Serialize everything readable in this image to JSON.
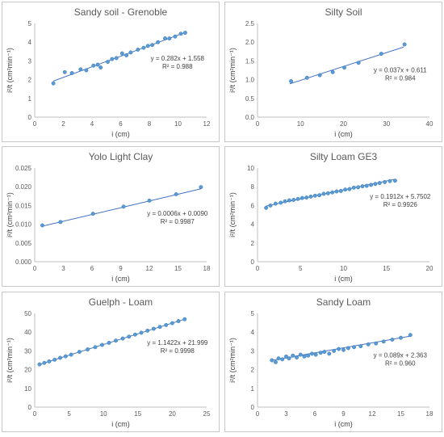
{
  "chart_data": [
    {
      "type": "scatter",
      "title": "Sandy soil - Grenoble",
      "xlabel": "i (cm)",
      "ylabel": "i²/t (cm²min⁻¹)",
      "xlim": [
        0,
        12
      ],
      "ylim": [
        0,
        5
      ],
      "xticks": [
        "0",
        "2",
        "4",
        "6",
        "8",
        "10",
        "12"
      ],
      "yticks": [
        "0",
        "1",
        "2",
        "3",
        "4",
        "5"
      ],
      "grid": false,
      "trendline": {
        "slope": 0.282,
        "intercept": 1.558,
        "x_range": [
          1.3,
          10.5
        ]
      },
      "equation": "y = 0.282x + 1.558",
      "r2": "R² = 0.988",
      "series": [
        {
          "x": [
            1.3,
            2.1,
            2.6,
            3.2,
            3.6,
            4.1,
            4.4,
            4.6,
            5.1,
            5.4,
            5.7,
            6.1,
            6.4,
            6.7,
            7.2,
            7.6,
            7.9,
            8.2,
            8.6,
            9.1,
            9.4,
            9.8,
            10.2,
            10.5
          ],
          "y": [
            1.8,
            2.4,
            2.35,
            2.55,
            2.5,
            2.75,
            2.8,
            2.65,
            2.95,
            3.1,
            3.15,
            3.4,
            3.3,
            3.45,
            3.6,
            3.7,
            3.8,
            3.85,
            4.0,
            4.2,
            4.2,
            4.3,
            4.45,
            4.5
          ]
        }
      ]
    },
    {
      "type": "scatter",
      "title": "Silty Soil",
      "xlabel": "i (cm)",
      "ylabel": "i²/t (cm²min⁻¹)",
      "xlim": [
        0,
        40
      ],
      "ylim": [
        0,
        2.5
      ],
      "xticks": [
        "0",
        "10",
        "20",
        "30",
        "40"
      ],
      "yticks": [
        "0.0",
        "0.5",
        "1.0",
        "1.5",
        "2.0",
        "2.5"
      ],
      "grid": false,
      "trendline": {
        "slope": 0.037,
        "intercept": 0.611,
        "x_range": [
          7.5,
          34
        ]
      },
      "equation": "y = 0.037x + 0.611",
      "r2": "R² = 0.984",
      "series": [
        {
          "x": [
            7.8,
            11.5,
            14.5,
            17.5,
            20.2,
            23.5,
            28.8,
            34.2
          ],
          "y": [
            0.96,
            1.05,
            1.12,
            1.2,
            1.32,
            1.45,
            1.69,
            1.94
          ]
        }
      ]
    },
    {
      "type": "scatter",
      "title": "Yolo Light Clay",
      "xlabel": "i (cm)",
      "ylabel": "i²/t (cm²min⁻¹)",
      "xlim": [
        0,
        18
      ],
      "ylim": [
        0,
        0.025
      ],
      "xticks": [
        "0",
        "3",
        "6",
        "9",
        "12",
        "15",
        "18"
      ],
      "yticks": [
        "0.000",
        "0.005",
        "0.010",
        "0.015",
        "0.020",
        "0.025"
      ],
      "grid": false,
      "trendline": {
        "slope": 0.0006,
        "intercept": 0.009,
        "x_range": [
          0.8,
          17.4
        ]
      },
      "equation": "y = 0.0006x + 0.0090",
      "r2": "R² = 0.9987",
      "series": [
        {
          "x": [
            0.8,
            2.7,
            6.1,
            9.3,
            12.0,
            14.8,
            17.4
          ],
          "y": [
            0.0097,
            0.0106,
            0.0128,
            0.0147,
            0.0163,
            0.018,
            0.0199
          ]
        }
      ]
    },
    {
      "type": "scatter",
      "title": "Silty Loam GE3",
      "xlabel": "i (cm)",
      "ylabel": "i²/t (cm²min⁻¹)",
      "xlim": [
        0,
        20
      ],
      "ylim": [
        0,
        10
      ],
      "xticks": [
        "0",
        "5",
        "10",
        "15",
        "20"
      ],
      "yticks": [
        "0",
        "2",
        "4",
        "6",
        "8",
        "10"
      ],
      "grid": false,
      "trendline": {
        "slope": 0.1912,
        "intercept": 5.7502,
        "x_range": [
          1.0,
          16.0
        ]
      },
      "equation": "y = 0.1912x + 5.7502",
      "r2": "R² = 0.9926",
      "series": [
        {
          "x": [
            1.0,
            1.5,
            2.1,
            2.7,
            3.2,
            3.7,
            4.2,
            4.7,
            5.2,
            5.7,
            6.2,
            6.7,
            7.2,
            7.7,
            8.2,
            8.7,
            9.2,
            9.7,
            10.2,
            10.7,
            11.2,
            11.7,
            12.2,
            12.7,
            13.2,
            13.7,
            14.2,
            14.8,
            15.4,
            16.0
          ],
          "y": [
            5.75,
            6.0,
            6.2,
            6.3,
            6.45,
            6.55,
            6.6,
            6.7,
            6.8,
            6.85,
            6.95,
            7.05,
            7.1,
            7.25,
            7.3,
            7.4,
            7.5,
            7.55,
            7.7,
            7.75,
            7.9,
            7.95,
            8.05,
            8.1,
            8.2,
            8.3,
            8.4,
            8.5,
            8.6,
            8.65
          ]
        }
      ]
    },
    {
      "type": "scatter",
      "title": "Guelph - Loam",
      "xlabel": "i (cm)",
      "ylabel": "i²/t (cm²min⁻¹)",
      "xlim": [
        0,
        25
      ],
      "ylim": [
        0,
        50
      ],
      "xticks": [
        "0",
        "5",
        "10",
        "15",
        "20",
        "25"
      ],
      "yticks": [
        "0",
        "10",
        "20",
        "30",
        "40",
        "50"
      ],
      "grid": false,
      "trendline": {
        "slope": 1.1422,
        "intercept": 21.999,
        "x_range": [
          0.7,
          21.8
        ]
      },
      "equation": "y = 1.1422x + 21.999",
      "r2": "R² = 0.9998",
      "series": [
        {
          "x": [
            0.7,
            1.4,
            2.1,
            2.9,
            3.7,
            4.5,
            5.3,
            6.5,
            7.7,
            8.8,
            9.8,
            10.8,
            11.8,
            12.8,
            13.7,
            14.6,
            15.5,
            16.4,
            17.3,
            18.2,
            19.1,
            20.0,
            20.9,
            21.8
          ],
          "y": [
            22.8,
            23.6,
            24.4,
            25.3,
            26.3,
            27.1,
            28.0,
            29.5,
            30.8,
            32.0,
            33.2,
            34.3,
            35.5,
            36.6,
            37.6,
            38.7,
            39.7,
            40.8,
            41.8,
            42.8,
            43.8,
            44.8,
            45.9,
            46.9
          ]
        }
      ]
    },
    {
      "type": "scatter",
      "title": "Sandy Loam",
      "xlabel": "i (cm)",
      "ylabel": "i²/t (cm²min⁻¹)",
      "xlim": [
        0,
        18
      ],
      "ylim": [
        0,
        5
      ],
      "xticks": [
        "0",
        "3",
        "6",
        "9",
        "12",
        "15",
        "18"
      ],
      "yticks": [
        "0",
        "1",
        "2",
        "3",
        "4",
        "5"
      ],
      "grid": false,
      "trendline": {
        "slope": 0.089,
        "intercept": 2.363,
        "x_range": [
          1.5,
          16.0
        ]
      },
      "equation": "y = 0.089x + 2.363",
      "r2": "R² = 0.960",
      "series": [
        {
          "x": [
            1.5,
            1.9,
            2.2,
            2.6,
            3.0,
            3.3,
            3.7,
            4.1,
            4.5,
            4.9,
            5.3,
            5.7,
            6.1,
            6.6,
            7.0,
            7.5,
            8.0,
            8.5,
            9.0,
            9.5,
            10.1,
            10.8,
            11.6,
            12.4,
            13.2,
            14.1,
            15.0,
            16.0
          ],
          "y": [
            2.5,
            2.4,
            2.6,
            2.55,
            2.7,
            2.6,
            2.75,
            2.65,
            2.8,
            2.7,
            2.75,
            2.85,
            2.8,
            2.9,
            2.95,
            2.85,
            3.0,
            3.1,
            3.05,
            3.15,
            3.2,
            3.25,
            3.35,
            3.4,
            3.5,
            3.6,
            3.7,
            3.85
          ]
        }
      ]
    }
  ],
  "colors": {
    "marker_fill": "#5b9bd5",
    "marker_edge": "#2e75b6",
    "trendline": "#4472c4",
    "axis": "#bfbfbf",
    "text": "#595959"
  }
}
